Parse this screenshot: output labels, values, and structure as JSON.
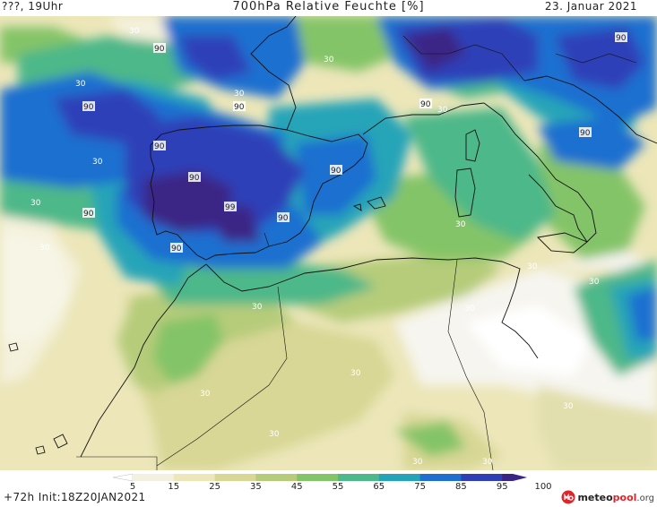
{
  "header": {
    "left": "???, 19Uhr",
    "title": "700hPa Relative Feuchte [%]",
    "date": "23. Januar 2021"
  },
  "colorbar": {
    "ticks": [
      "5",
      "15",
      "25",
      "35",
      "45",
      "55",
      "65",
      "75",
      "85",
      "95",
      "100"
    ],
    "colors": [
      "#ffffff",
      "#f2f0e0",
      "#ece6b9",
      "#d8d795",
      "#b6cc7a",
      "#84c468",
      "#4db889",
      "#25a4b8",
      "#1f6fd0",
      "#2e3fb8",
      "#3a2586"
    ]
  },
  "contour_labels": {
    "thirty": "30",
    "ninety": "90",
    "ninetynine": "99"
  },
  "footer": {
    "init": "+72h  Init:18Z20JAN2021",
    "logo_main": "meteo",
    "logo_accent": "pool",
    "logo_tld": ".org"
  }
}
